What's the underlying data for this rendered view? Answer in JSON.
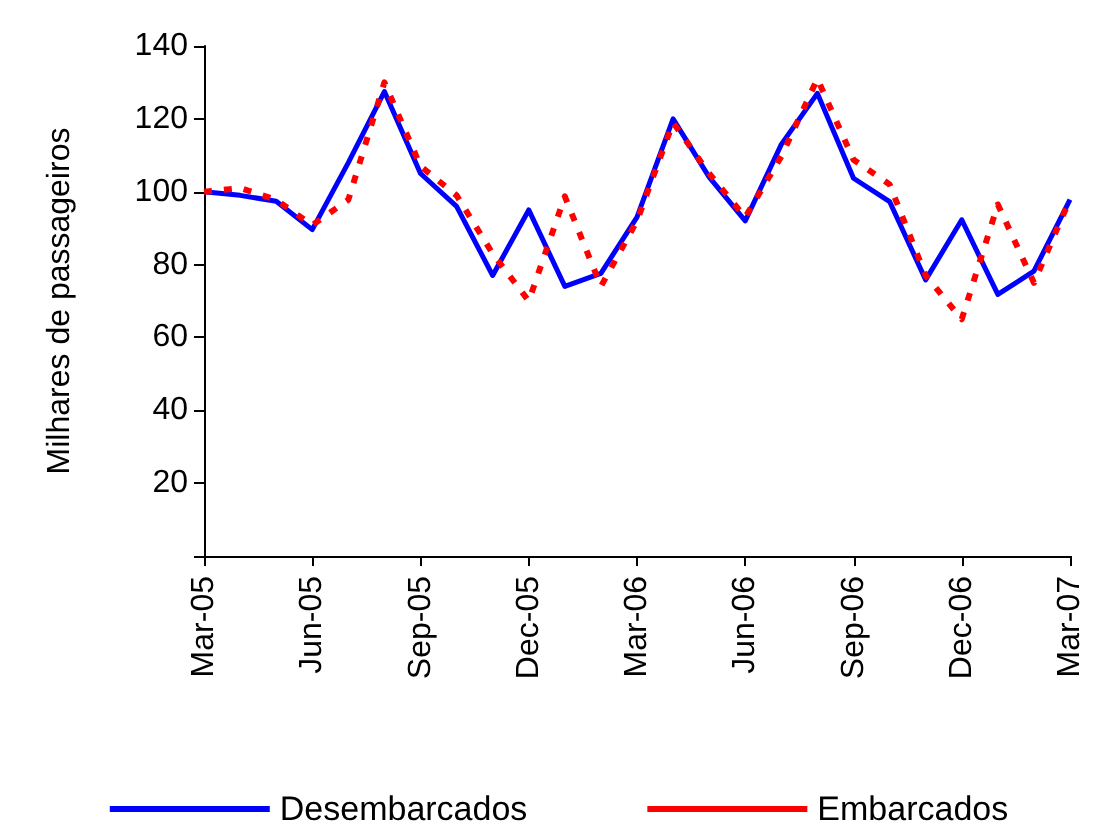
{
  "chart_data": {
    "type": "line",
    "ylabel": "Milhares de passageiros",
    "categories": [
      "Mar-05",
      null,
      null,
      "Jun-05",
      null,
      null,
      "Sep-05",
      null,
      null,
      "Dec-05",
      null,
      null,
      "Mar-06",
      null,
      null,
      "Jun-06",
      null,
      null,
      "Sep-06",
      null,
      null,
      "Dec-06",
      null,
      null,
      "Mar-07"
    ],
    "series": [
      {
        "name": "Desembarcados",
        "color": "#0000ff",
        "line_style": "solid",
        "values": [
          100,
          99,
          97.4,
          89.6,
          108,
          127.5,
          105,
          96,
          77,
          95,
          74,
          77.6,
          93,
          120,
          104,
          92,
          113,
          127,
          103.7,
          97.3,
          75.8,
          92.3,
          71.8,
          78.2,
          97.8
        ]
      },
      {
        "name": "Embarcados",
        "color": "#ff0000",
        "line_style": "dashed",
        "values": [
          100,
          101,
          97.8,
          90.8,
          97.8,
          130,
          107,
          99,
          83,
          70,
          98.7,
          74,
          92,
          119,
          105,
          93,
          109.7,
          131,
          108.8,
          102,
          77,
          65,
          96.5,
          75,
          98
        ]
      }
    ],
    "ylim": [
      0,
      140
    ],
    "yticks": [
      {
        "value": 0,
        "label": null
      },
      20,
      40,
      60,
      80,
      100,
      120,
      140
    ],
    "grid": false,
    "legend": "bottom",
    "marker": "none"
  }
}
